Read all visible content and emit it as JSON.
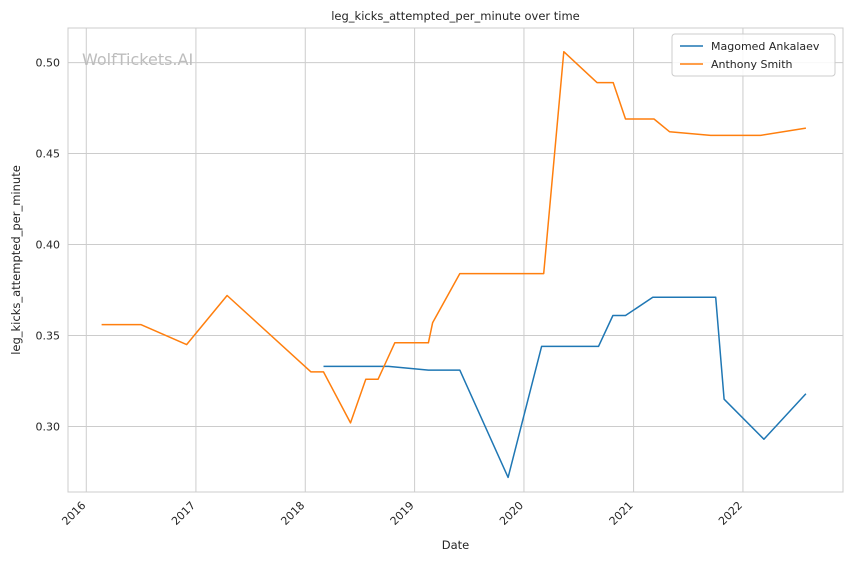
{
  "chart_data": {
    "type": "line",
    "title": "leg_kicks_attempted_per_minute over time",
    "xlabel": "Date",
    "ylabel": "leg_kicks_attempted_per_minute",
    "watermark": "WolfTickets.AI",
    "x_ticks": [
      "2016",
      "2017",
      "2018",
      "2019",
      "2020",
      "2021",
      "2022"
    ],
    "y_ticks": [
      "0.30",
      "0.35",
      "0.40",
      "0.45",
      "0.50"
    ],
    "xlim": [
      "2015-11-01",
      "2022-12-01"
    ],
    "ylim": [
      0.264,
      0.519
    ],
    "grid": true,
    "legend_position": "top-right",
    "series": [
      {
        "name": "Magomed Ankalaev",
        "color": "#1f77b4",
        "points": [
          [
            "2018-03-03",
            0.333
          ],
          [
            "2018-10-06",
            0.333
          ],
          [
            "2019-02-16",
            0.331
          ],
          [
            "2019-06-01",
            0.331
          ],
          [
            "2019-11-09",
            0.272
          ],
          [
            "2020-02-29",
            0.344
          ],
          [
            "2020-09-06",
            0.344
          ],
          [
            "2020-10-24",
            0.361
          ],
          [
            "2020-12-05",
            0.361
          ],
          [
            "2021-03-06",
            0.371
          ],
          [
            "2021-10-02",
            0.371
          ],
          [
            "2021-10-30",
            0.315
          ],
          [
            "2022-03-12",
            0.293
          ],
          [
            "2022-07-30",
            0.318
          ]
        ]
      },
      {
        "name": "Anthony Smith",
        "color": "#ff7f0e",
        "points": [
          [
            "2016-02-21",
            0.356
          ],
          [
            "2016-07-01",
            0.356
          ],
          [
            "2016-12-01",
            0.345
          ],
          [
            "2017-04-15",
            0.372
          ],
          [
            "2018-01-20",
            0.33
          ],
          [
            "2018-03-03",
            0.33
          ],
          [
            "2018-06-01",
            0.302
          ],
          [
            "2018-07-22",
            0.326
          ],
          [
            "2018-09-01",
            0.326
          ],
          [
            "2018-10-27",
            0.346
          ],
          [
            "2019-02-16",
            0.346
          ],
          [
            "2019-03-02",
            0.357
          ],
          [
            "2019-06-01",
            0.384
          ],
          [
            "2020-03-07",
            0.384
          ],
          [
            "2020-05-13",
            0.506
          ],
          [
            "2020-09-01",
            0.489
          ],
          [
            "2020-10-25",
            0.489
          ],
          [
            "2020-12-05",
            0.469
          ],
          [
            "2021-03-10",
            0.469
          ],
          [
            "2021-05-01",
            0.462
          ],
          [
            "2021-09-15",
            0.46
          ],
          [
            "2022-03-01",
            0.46
          ],
          [
            "2022-07-30",
            0.464
          ]
        ]
      }
    ]
  }
}
